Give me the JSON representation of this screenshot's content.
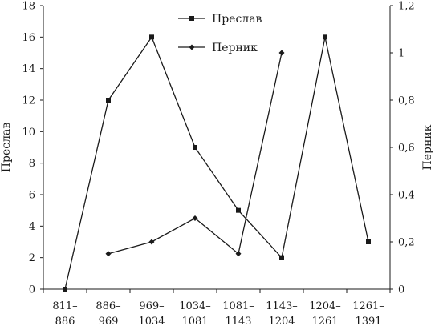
{
  "chart_data": {
    "type": "line",
    "categories": [
      [
        "811–",
        "886"
      ],
      [
        "886–",
        "969"
      ],
      [
        "969–",
        "1034"
      ],
      [
        "1034–",
        "1081"
      ],
      [
        "1081–",
        "1143"
      ],
      [
        "1143–",
        "1204"
      ],
      [
        "1204–",
        "1261"
      ],
      [
        "1261–",
        "1391"
      ]
    ],
    "ylabel_left": "Преслав",
    "ylabel_right": "Перник",
    "y_left": {
      "lim": [
        0,
        18
      ],
      "ticks": [
        0,
        2,
        4,
        6,
        8,
        10,
        12,
        14,
        16,
        18
      ],
      "tick_labels": [
        "0",
        "2",
        "4",
        "6",
        "8",
        "10",
        "12",
        "14",
        "16",
        "18"
      ]
    },
    "y_right": {
      "lim": [
        0,
        1.2
      ],
      "ticks": [
        0,
        0.2,
        0.4,
        0.6,
        0.8,
        1.0,
        1.2
      ],
      "tick_labels": [
        "0",
        "0,2",
        "0,4",
        "0,6",
        "0,8",
        "1",
        "1,2"
      ]
    },
    "series": [
      {
        "name": "Преслав",
        "axis": "left",
        "marker": "square",
        "color": "#1a1a1a",
        "values": [
          0,
          12,
          16,
          9,
          5,
          2,
          16,
          3
        ],
        "segments": [
          [
            0,
            1,
            2,
            3,
            4,
            5,
            6,
            7
          ]
        ]
      },
      {
        "name": "Перник",
        "axis": "right",
        "marker": "diamond",
        "color": "#1a1a1a",
        "values": [
          null,
          0.15,
          0.2,
          0.3,
          0.15,
          1.0,
          null,
          null
        ],
        "segments": [
          [
            1,
            2,
            3,
            4,
            5
          ]
        ]
      }
    ],
    "legend": "top-center",
    "grid": false
  }
}
